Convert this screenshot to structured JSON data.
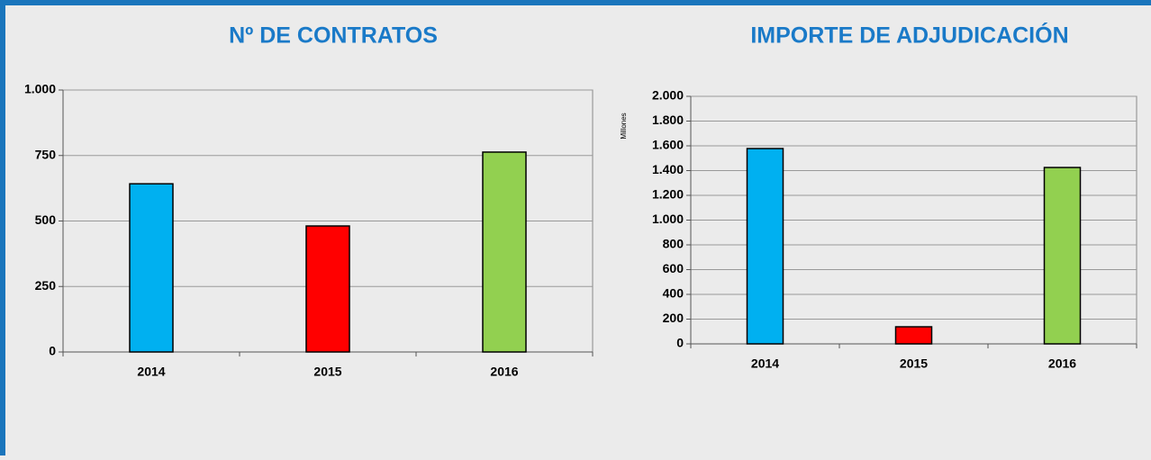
{
  "chart_data": [
    {
      "type": "bar",
      "title": "Nº DE CONTRATOS",
      "categories": [
        "2014",
        "2015",
        "2016"
      ],
      "values": [
        642,
        481,
        763
      ],
      "colors": [
        "#00b0f0",
        "#ff0000",
        "#92d050"
      ],
      "ylim": [
        0,
        1000
      ],
      "yticks": [
        0,
        250,
        500,
        750,
        {
          "value": 1000,
          "label": "1.000"
        }
      ],
      "grid": true
    },
    {
      "type": "bar",
      "title": "IMPORTE DE ADJUDICACIÓN",
      "y_label": "Millones",
      "categories": [
        "2014",
        "2015",
        "2016"
      ],
      "values": [
        1578,
        138,
        1425
      ],
      "colors": [
        "#00b0f0",
        "#ff0000",
        "#92d050"
      ],
      "ylim": [
        0,
        2000
      ],
      "yticks": [
        0,
        200,
        400,
        600,
        800,
        {
          "value": 1000,
          "label": "1.000"
        },
        {
          "value": 1200,
          "label": "1.200"
        },
        {
          "value": 1400,
          "label": "1.400"
        },
        {
          "value": 1600,
          "label": "1.600"
        },
        {
          "value": 1800,
          "label": "1.800"
        },
        {
          "value": 2000,
          "label": "2.000"
        }
      ],
      "grid": true
    }
  ]
}
